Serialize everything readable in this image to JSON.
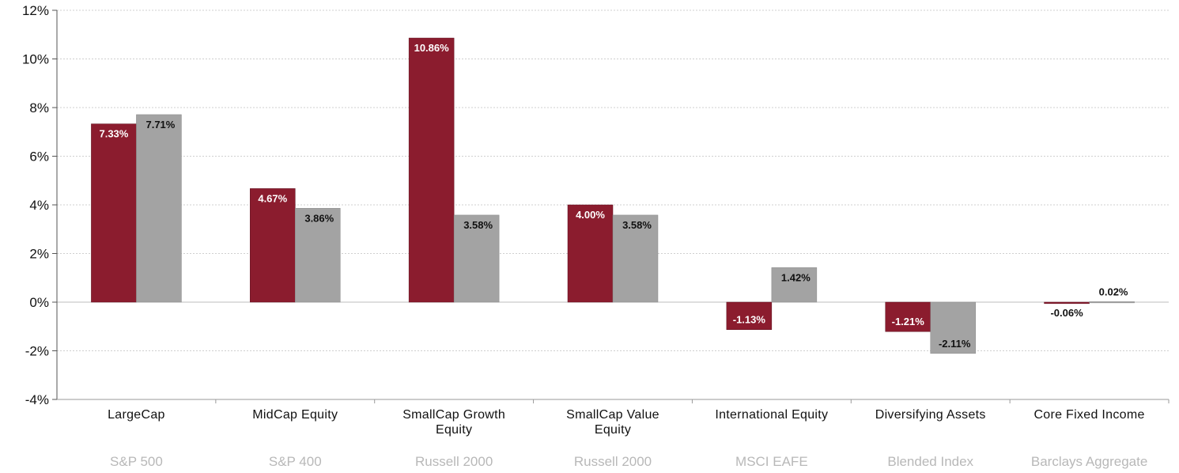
{
  "chart_data": {
    "type": "bar",
    "categories": [
      [
        "LargeCap"
      ],
      [
        "MidCap Equity"
      ],
      [
        "SmallCap Growth",
        "Equity"
      ],
      [
        "SmallCap Value",
        "Equity"
      ],
      [
        "International Equity"
      ],
      [
        "Diversifying Assets"
      ],
      [
        "Core Fixed Income"
      ]
    ],
    "index_labels": [
      "S&P 500",
      "S&P 400",
      "Russell 2000",
      "Russell 2000",
      "MSCI EAFE",
      "Blended Index",
      "Barclays Aggregate"
    ],
    "series": [
      {
        "values": [
          7.33,
          4.67,
          10.86,
          4.0,
          -1.13,
          -1.21,
          -0.06
        ],
        "labels": [
          "7.33%",
          "4.67%",
          "10.86%",
          "4.00%",
          "-1.13%",
          "-1.21%",
          "-0.06%"
        ],
        "color": "#8b1c2e"
      },
      {
        "values": [
          7.71,
          3.86,
          3.58,
          3.58,
          1.42,
          -2.11,
          0.02
        ],
        "labels": [
          "7.71%",
          "3.86%",
          "3.58%",
          "3.58%",
          "1.42%",
          "-2.11%",
          "0.02%"
        ],
        "color": "#a3a3a3"
      }
    ],
    "ylim": [
      -4,
      12
    ],
    "yticks": [
      -4,
      -2,
      0,
      2,
      4,
      6,
      8,
      10,
      12
    ],
    "ytick_labels": [
      "-4%",
      "-2%",
      "0%",
      "2%",
      "4%",
      "6%",
      "8%",
      "10%",
      "12%"
    ],
    "grid": true,
    "legend": "none"
  }
}
